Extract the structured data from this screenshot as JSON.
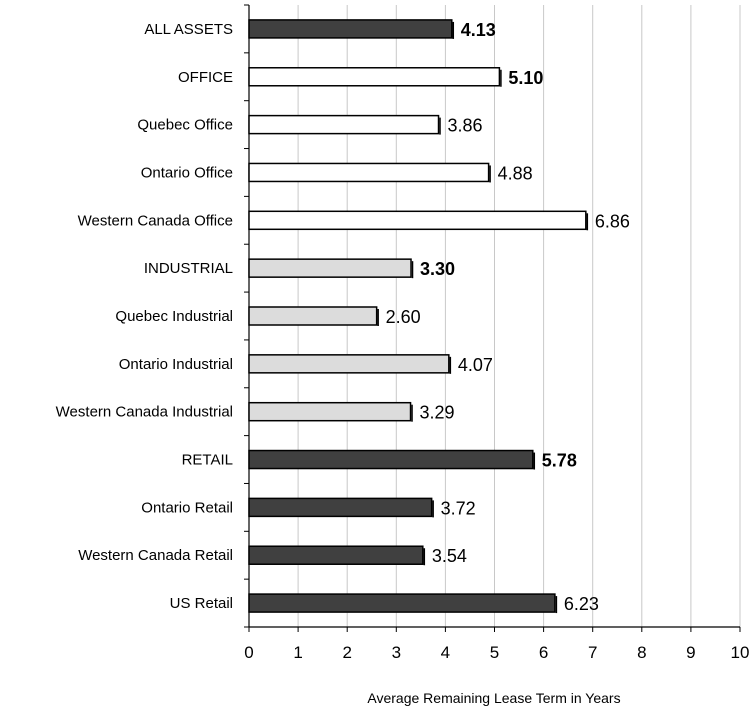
{
  "chart_data": {
    "type": "bar",
    "orientation": "horizontal",
    "categories": [
      "ALL ASSETS",
      "OFFICE",
      "Quebec Office",
      "Ontario Office",
      "Western Canada Office",
      "INDUSTRIAL",
      "Quebec Industrial",
      "Ontario Industrial",
      "Western Canada Industrial",
      "RETAIL",
      "Ontario Retail",
      "Western Canada Retail",
      "US Retail"
    ],
    "values": [
      4.13,
      5.1,
      3.86,
      4.88,
      6.86,
      3.3,
      2.6,
      4.07,
      3.29,
      5.78,
      3.72,
      3.54,
      6.23
    ],
    "value_labels": [
      "4.13",
      "5.10",
      "3.86",
      "4.88",
      "6.86",
      "3.30",
      "2.60",
      "4.07",
      "3.29",
      "5.78",
      "3.72",
      "3.54",
      "6.23"
    ],
    "bold_labels": [
      true,
      true,
      false,
      false,
      false,
      true,
      false,
      false,
      false,
      true,
      false,
      false,
      false
    ],
    "bar_colors": [
      "#404040",
      "#ffffff",
      "#ffffff",
      "#ffffff",
      "#ffffff",
      "#dcdcdc",
      "#dcdcdc",
      "#dcdcdc",
      "#dcdcdc",
      "#404040",
      "#404040",
      "#404040",
      "#404040"
    ],
    "xlabel": "Average Remaining Lease Term in Years",
    "ylabel": "",
    "title": "",
    "xlim": [
      0,
      10
    ],
    "xticks": [
      "0",
      "1",
      "2",
      "3",
      "4",
      "5",
      "6",
      "7",
      "8",
      "9",
      "10"
    ],
    "grid": "vertical",
    "legend": "none"
  }
}
